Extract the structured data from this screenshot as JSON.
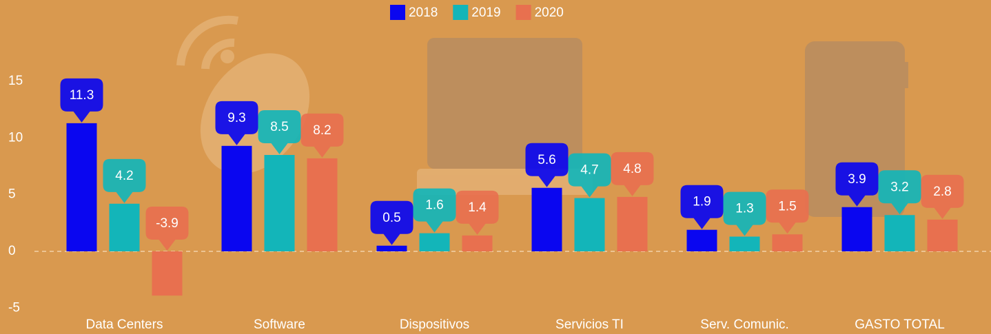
{
  "chart_data": {
    "type": "bar",
    "categories": [
      "Data Centers",
      "Software",
      "Dispositivos",
      "Servicios TI",
      "Serv. Comunic.",
      "GASTO TOTAL"
    ],
    "series": [
      {
        "name": "2018",
        "color": "#0a06f0",
        "values": [
          11.3,
          9.3,
          0.5,
          5.6,
          1.9,
          3.9
        ]
      },
      {
        "name": "2019",
        "color": "#13b5b9",
        "values": [
          4.2,
          8.5,
          1.6,
          4.7,
          1.3,
          3.2
        ]
      },
      {
        "name": "2020",
        "color": "#e8704f",
        "values": [
          -3.9,
          8.2,
          1.4,
          4.8,
          1.5,
          2.8
        ]
      }
    ],
    "ylim": [
      -6,
      20
    ],
    "yticks": [
      -5,
      0,
      5,
      10,
      15
    ],
    "grid": false,
    "legend": "top"
  }
}
